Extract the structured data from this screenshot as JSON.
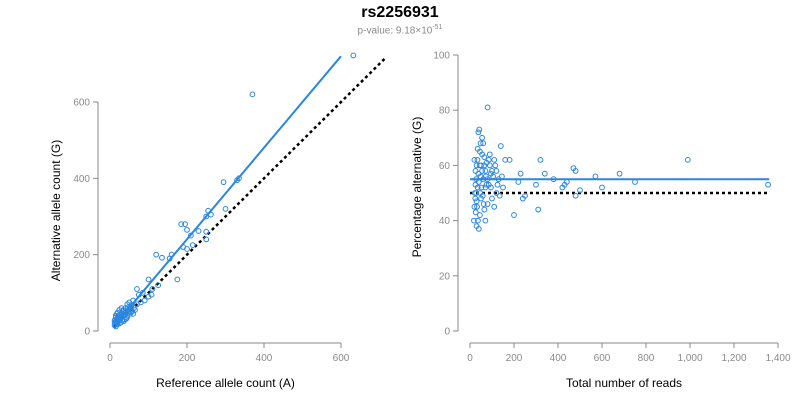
{
  "title": "rs2256931",
  "subtitle": {
    "prefix": "p-value: 9.18×10",
    "exponent": "-51"
  },
  "colors": {
    "point": "#2a86e0",
    "fit": "#2a86e0",
    "reference": "#000000",
    "axis": "#8a8a8a"
  },
  "chart_data": [
    {
      "type": "scatter",
      "xlabel": "Reference allele count (A)",
      "ylabel": "Alternative allele count (G)",
      "xlim": [
        0,
        700
      ],
      "ylim": [
        0,
        720
      ],
      "xticks": [
        0,
        200,
        400,
        600
      ],
      "yticks": [
        0,
        200,
        400,
        600
      ],
      "xtick_labels": [
        "0",
        "200",
        "400",
        "600"
      ],
      "ytick_labels": [
        "0",
        "200",
        "400",
        "600"
      ],
      "fit_line": {
        "x": [
          12,
          600
        ],
        "y": [
          15,
          720
        ]
      },
      "reference_line": {
        "x": [
          10,
          715
        ],
        "y": [
          10,
          715
        ]
      },
      "points": [
        [
          632,
          722
        ],
        [
          370,
          620
        ],
        [
          335,
          400
        ],
        [
          295,
          390
        ],
        [
          330,
          395
        ],
        [
          255,
          315
        ],
        [
          262,
          305
        ],
        [
          250,
          300
        ],
        [
          250,
          260
        ],
        [
          300,
          320
        ],
        [
          195,
          280
        ],
        [
          185,
          280
        ],
        [
          200,
          265
        ],
        [
          230,
          262
        ],
        [
          250,
          240
        ],
        [
          210,
          250
        ],
        [
          215,
          225
        ],
        [
          190,
          220
        ],
        [
          200,
          215
        ],
        [
          160,
          200
        ],
        [
          155,
          190
        ],
        [
          175,
          135
        ],
        [
          135,
          192
        ],
        [
          120,
          200
        ],
        [
          125,
          120
        ],
        [
          100,
          135
        ],
        [
          110,
          110
        ],
        [
          108,
          95
        ],
        [
          100,
          90
        ],
        [
          85,
          100
        ],
        [
          75,
          95
        ],
        [
          70,
          110
        ],
        [
          90,
          80
        ],
        [
          60,
          80
        ],
        [
          62,
          60
        ],
        [
          65,
          55
        ],
        [
          70,
          70
        ],
        [
          80,
          75
        ],
        [
          55,
          65
        ],
        [
          50,
          75
        ],
        [
          45,
          70
        ],
        [
          40,
          60
        ],
        [
          35,
          55
        ],
        [
          30,
          45
        ],
        [
          28,
          35
        ],
        [
          25,
          30
        ],
        [
          20,
          25
        ],
        [
          18,
          20
        ],
        [
          15,
          25
        ],
        [
          12,
          15
        ],
        [
          22,
          40
        ],
        [
          32,
          28
        ],
        [
          38,
          42
        ],
        [
          45,
          40
        ],
        [
          48,
          55
        ],
        [
          52,
          45
        ],
        [
          30,
          60
        ],
        [
          24,
          55
        ],
        [
          15,
          35
        ],
        [
          18,
          45
        ],
        [
          25,
          20
        ],
        [
          20,
          18
        ],
        [
          12,
          22
        ],
        [
          15,
          12
        ],
        [
          28,
          22
        ],
        [
          34,
          38
        ],
        [
          42,
          32
        ],
        [
          55,
          50
        ],
        [
          60,
          45
        ],
        [
          40,
          48
        ],
        [
          36,
          26
        ],
        [
          22,
          30
        ],
        [
          16,
          28
        ],
        [
          14,
          18
        ],
        [
          26,
          44
        ],
        [
          33,
          52
        ],
        [
          47,
          62
        ],
        [
          58,
          52
        ],
        [
          44,
          35
        ],
        [
          38,
          30
        ],
        [
          20,
          35
        ],
        [
          18,
          30
        ],
        [
          24,
          28
        ],
        [
          30,
          36
        ],
        [
          35,
          44
        ],
        [
          42,
          50
        ],
        [
          55,
          68
        ],
        [
          12,
          28
        ],
        [
          15,
          40
        ],
        [
          20,
          48
        ]
      ]
    },
    {
      "type": "scatter",
      "xlabel": "Total number of reads",
      "ylabel": "Percentage alternative (G)",
      "xlim": [
        0,
        1400
      ],
      "ylim": [
        0,
        100
      ],
      "xticks": [
        0,
        200,
        400,
        600,
        800,
        1000,
        1200,
        1400
      ],
      "yticks": [
        0,
        20,
        40,
        60,
        80,
        100
      ],
      "xtick_labels": [
        "0",
        "200",
        "400",
        "600",
        "800",
        "1,000",
        "1,200",
        "1,400"
      ],
      "ytick_labels": [
        "0",
        "20",
        "40",
        "60",
        "80",
        "100"
      ],
      "fit_line": {
        "x": [
          0,
          1360
        ],
        "y": [
          55,
          55
        ]
      },
      "reference_line": {
        "x": [
          0,
          1360
        ],
        "y": [
          50,
          50
        ]
      },
      "points": [
        [
          1355,
          53
        ],
        [
          990,
          62
        ],
        [
          750,
          54
        ],
        [
          680,
          57
        ],
        [
          600,
          52
        ],
        [
          570,
          56
        ],
        [
          480,
          58
        ],
        [
          470,
          59
        ],
        [
          480,
          49
        ],
        [
          500,
          51
        ],
        [
          440,
          54
        ],
        [
          430,
          53
        ],
        [
          420,
          52
        ],
        [
          380,
          55
        ],
        [
          340,
          57
        ],
        [
          320,
          62
        ],
        [
          310,
          44
        ],
        [
          300,
          53
        ],
        [
          250,
          49
        ],
        [
          240,
          48
        ],
        [
          230,
          57
        ],
        [
          220,
          54
        ],
        [
          200,
          42
        ],
        [
          180,
          62
        ],
        [
          160,
          62
        ],
        [
          150,
          52
        ],
        [
          140,
          67
        ],
        [
          130,
          55
        ],
        [
          120,
          50
        ],
        [
          110,
          62
        ],
        [
          100,
          48
        ],
        [
          95,
          57
        ],
        [
          90,
          60
        ],
        [
          85,
          53
        ],
        [
          80,
          46
        ],
        [
          80,
          81
        ],
        [
          75,
          61
        ],
        [
          70,
          52
        ],
        [
          65,
          60
        ],
        [
          60,
          55
        ],
        [
          55,
          64
        ],
        [
          50,
          48
        ],
        [
          45,
          42
        ],
        [
          40,
          37
        ],
        [
          42,
          73
        ],
        [
          38,
          72
        ],
        [
          35,
          66
        ],
        [
          30,
          60
        ],
        [
          28,
          55
        ],
        [
          25,
          58
        ],
        [
          22,
          50
        ],
        [
          20,
          45
        ],
        [
          18,
          40
        ],
        [
          20,
          62
        ],
        [
          25,
          53
        ],
        [
          30,
          47
        ],
        [
          35,
          52
        ],
        [
          38,
          57
        ],
        [
          45,
          65
        ],
        [
          50,
          60
        ],
        [
          55,
          58
        ],
        [
          60,
          68
        ],
        [
          65,
          44
        ],
        [
          70,
          40
        ],
        [
          72,
          56
        ],
        [
          75,
          53
        ],
        [
          85,
          62
        ],
        [
          90,
          64
        ],
        [
          100,
          58
        ],
        [
          110,
          45
        ],
        [
          120,
          58
        ],
        [
          28,
          50
        ],
        [
          32,
          45
        ],
        [
          34,
          62
        ],
        [
          40,
          54
        ],
        [
          46,
          50
        ],
        [
          48,
          56
        ],
        [
          52,
          52
        ],
        [
          58,
          49
        ],
        [
          62,
          46
        ],
        [
          24,
          48
        ],
        [
          26,
          43
        ],
        [
          30,
          38
        ],
        [
          36,
          40
        ],
        [
          44,
          60
        ],
        [
          48,
          68
        ],
        [
          55,
          70
        ],
        [
          65,
          63
        ],
        [
          70,
          58
        ],
        [
          80,
          55
        ],
        [
          95,
          52
        ],
        [
          105,
          56
        ],
        [
          115,
          60
        ],
        [
          125,
          53
        ],
        [
          135,
          49
        ],
        [
          145,
          56
        ]
      ]
    }
  ]
}
